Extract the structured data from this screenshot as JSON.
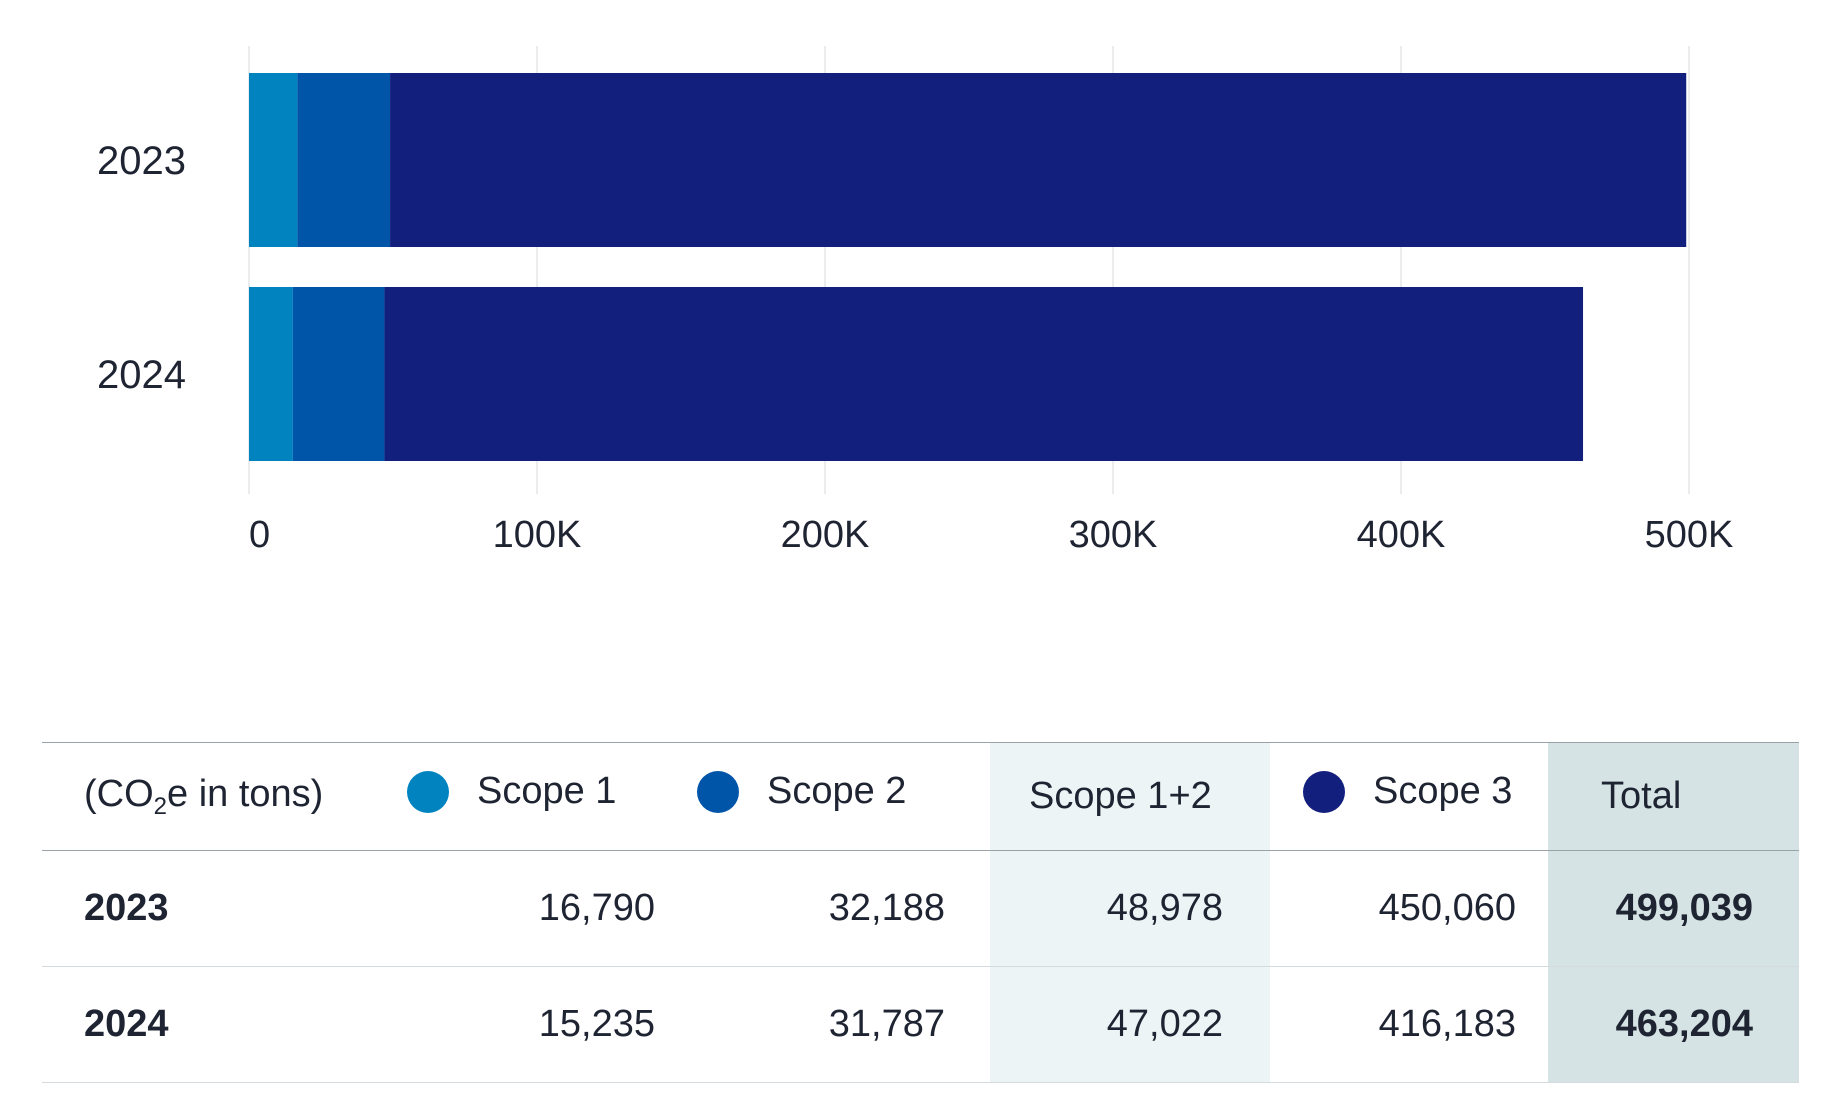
{
  "chart_data": {
    "type": "bar",
    "orientation": "horizontal",
    "stacked": true,
    "categories": [
      "2023",
      "2024"
    ],
    "series": [
      {
        "name": "Scope 1",
        "color": "#0083bf",
        "values": [
          16790,
          15235
        ]
      },
      {
        "name": "Scope 2",
        "color": "#0055a8",
        "values": [
          32188,
          31787
        ]
      },
      {
        "name": "Scope 3",
        "color": "#121f7d",
        "values": [
          450060,
          416183
        ]
      }
    ],
    "xlim": [
      0,
      500000
    ],
    "x_ticks": [
      0,
      100000,
      200000,
      300000,
      400000,
      500000
    ],
    "x_tick_labels": [
      "0",
      "100K",
      "200K",
      "300K",
      "400K",
      "500K"
    ],
    "grid": true,
    "title": "",
    "xlabel": "",
    "ylabel": ""
  },
  "table": {
    "unit_label": {
      "prefix": "(CO",
      "sub": "2",
      "suffix": "e in tons)"
    },
    "headers": {
      "scope1": "Scope 1",
      "scope2": "Scope 2",
      "scope12": "Scope 1+2",
      "scope3": "Scope 3",
      "total": "Total"
    },
    "rows": [
      {
        "year": "2023",
        "scope1": "16,790",
        "scope2": "32,188",
        "scope12": "48,978",
        "scope3": "450,060",
        "total": "499,039"
      },
      {
        "year": "2024",
        "scope1": "15,235",
        "scope2": "31,787",
        "scope12": "47,022",
        "scope3": "416,183",
        "total": "463,204"
      }
    ],
    "colors": {
      "scope1": "#0083bf",
      "scope2": "#0055a8",
      "scope3": "#121f7d",
      "highlight_light": "#edf4f6",
      "highlight_dark": "#d6e3e4"
    }
  }
}
